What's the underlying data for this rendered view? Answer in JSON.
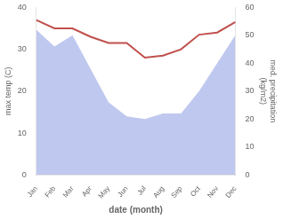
{
  "chart_data": {
    "type": "line",
    "xlabel": "date (month)",
    "ylabel": "max temp (C)",
    "y2label": "med. precipitation\n(kg/m2)",
    "categories": [
      "Jan",
      "Feb",
      "Mar",
      "Apr",
      "May",
      "Jun",
      "Jul",
      "Aug",
      "Sep",
      "Oct",
      "Nov",
      "Dec"
    ],
    "series": [
      {
        "type": "area",
        "color": "#bfc8ee",
        "axis": "y2",
        "values": [
          52,
          46,
          50,
          38,
          26,
          21,
          20,
          22,
          22,
          30,
          40,
          50
        ]
      },
      {
        "type": "line",
        "color": "#c0504d",
        "values": [
          37,
          35,
          35,
          33,
          31.5,
          31.5,
          28,
          28.5,
          30,
          33.5,
          34,
          36.5
        ]
      }
    ],
    "ylim": [
      0,
      40
    ],
    "yticks": [
      0,
      10,
      20,
      30,
      40
    ],
    "y2lim": [
      0,
      60
    ],
    "y2ticks": [
      0,
      10,
      20,
      30,
      40,
      50,
      60
    ],
    "grid": false
  }
}
